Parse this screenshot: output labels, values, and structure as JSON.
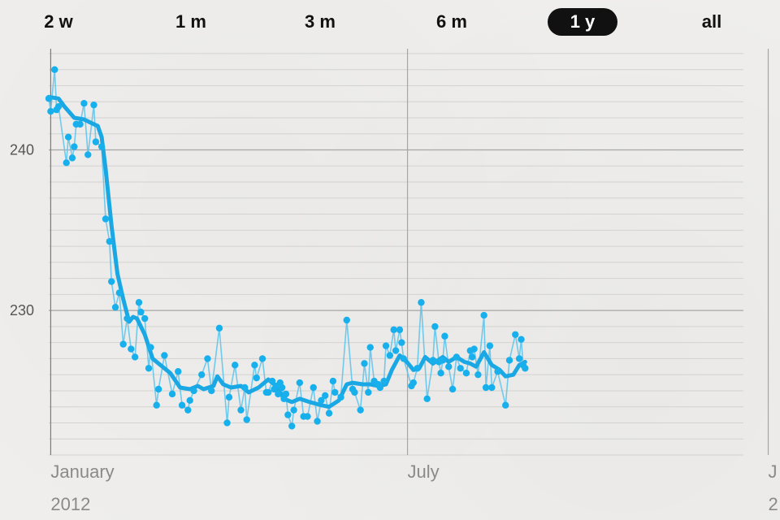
{
  "range_selector": {
    "options": [
      {
        "label": "2 w"
      },
      {
        "label": "1 m"
      },
      {
        "label": "3 m"
      },
      {
        "label": "6 m"
      },
      {
        "label": "1 y"
      },
      {
        "label": "all"
      }
    ],
    "selected": "1 y"
  },
  "colors": {
    "line": "#1aa8e4",
    "raw": "#5bc3ec",
    "point": "#18b0ec",
    "grid_major": "#a6a6a6",
    "grid_minor": "#d2d2d0",
    "background": "#efeeec"
  },
  "chart_data": {
    "type": "line",
    "title": "",
    "xlabel": "",
    "ylabel": "",
    "ylim": [
      221.0,
      246.3
    ],
    "xlim": [
      "2011-12-31",
      "2013-01-07"
    ],
    "y_ticks": [
      230,
      240
    ],
    "x_ticks": [
      {
        "date": "2012-01-01",
        "label": "January",
        "sublabel": "2012"
      },
      {
        "date": "2012-07-01",
        "label": "July",
        "sublabel": ""
      },
      {
        "date": "2013-01-01",
        "label": "J",
        "sublabel": "2"
      }
    ],
    "grid": true,
    "legend": "none",
    "series": [
      {
        "kind": "points",
        "points": [
          [
            "2011-12-31",
            243.2
          ],
          [
            "2012-01-01",
            242.4
          ],
          [
            "2012-01-03",
            245.0
          ],
          [
            "2012-01-04",
            242.5
          ],
          [
            "2012-01-05",
            242.7
          ],
          [
            "2012-01-09",
            239.2
          ],
          [
            "2012-01-10",
            240.8
          ],
          [
            "2012-01-12",
            239.5
          ],
          [
            "2012-01-13",
            240.2
          ],
          [
            "2012-01-14",
            241.6
          ],
          [
            "2012-01-16",
            241.6
          ],
          [
            "2012-01-18",
            242.9
          ],
          [
            "2012-01-20",
            239.7
          ],
          [
            "2012-01-23",
            242.8
          ],
          [
            "2012-01-24",
            240.5
          ],
          [
            "2012-01-27",
            240.2
          ],
          [
            "2012-01-29",
            235.7
          ],
          [
            "2012-01-31",
            234.3
          ],
          [
            "2012-02-01",
            231.8
          ],
          [
            "2012-02-03",
            230.2
          ],
          [
            "2012-02-05",
            231.1
          ],
          [
            "2012-02-07",
            227.9
          ],
          [
            "2012-02-09",
            229.5
          ],
          [
            "2012-02-11",
            227.6
          ],
          [
            "2012-02-13",
            227.1
          ],
          [
            "2012-02-15",
            230.5
          ],
          [
            "2012-02-16",
            229.9
          ],
          [
            "2012-02-18",
            229.5
          ],
          [
            "2012-02-20",
            226.4
          ],
          [
            "2012-02-21",
            227.7
          ],
          [
            "2012-02-24",
            224.1
          ],
          [
            "2012-02-25",
            225.1
          ],
          [
            "2012-02-28",
            227.2
          ],
          [
            "2012-03-03",
            224.8
          ],
          [
            "2012-03-06",
            226.2
          ],
          [
            "2012-03-08",
            224.1
          ],
          [
            "2012-03-11",
            223.8
          ],
          [
            "2012-03-12",
            224.4
          ],
          [
            "2012-03-14",
            225.0
          ],
          [
            "2012-03-18",
            226.0
          ],
          [
            "2012-03-21",
            227.0
          ],
          [
            "2012-03-23",
            225.0
          ],
          [
            "2012-03-27",
            228.9
          ],
          [
            "2012-03-31",
            223.0
          ],
          [
            "2012-04-01",
            224.6
          ],
          [
            "2012-04-04",
            226.6
          ],
          [
            "2012-04-07",
            223.8
          ],
          [
            "2012-04-09",
            225.2
          ],
          [
            "2012-04-10",
            223.2
          ],
          [
            "2012-04-14",
            226.6
          ],
          [
            "2012-04-15",
            225.8
          ],
          [
            "2012-04-18",
            227.0
          ],
          [
            "2012-04-20",
            224.9
          ],
          [
            "2012-04-21",
            224.9
          ],
          [
            "2012-04-23",
            225.6
          ],
          [
            "2012-04-24",
            225.1
          ],
          [
            "2012-04-25",
            225.3
          ],
          [
            "2012-04-26",
            224.8
          ],
          [
            "2012-04-27",
            225.5
          ],
          [
            "2012-04-28",
            225.2
          ],
          [
            "2012-04-29",
            224.5
          ],
          [
            "2012-04-30",
            224.8
          ],
          [
            "2012-05-01",
            223.5
          ],
          [
            "2012-05-03",
            222.8
          ],
          [
            "2012-05-04",
            223.8
          ],
          [
            "2012-05-07",
            225.5
          ],
          [
            "2012-05-09",
            223.4
          ],
          [
            "2012-05-11",
            223.4
          ],
          [
            "2012-05-14",
            225.2
          ],
          [
            "2012-05-16",
            223.1
          ],
          [
            "2012-05-18",
            224.4
          ],
          [
            "2012-05-20",
            224.7
          ],
          [
            "2012-05-22",
            223.6
          ],
          [
            "2012-05-24",
            225.6
          ],
          [
            "2012-05-25",
            224.9
          ],
          [
            "2012-05-28",
            224.6
          ],
          [
            "2012-05-31",
            229.4
          ],
          [
            "2012-06-03",
            225.1
          ],
          [
            "2012-06-04",
            224.9
          ],
          [
            "2012-06-07",
            223.8
          ],
          [
            "2012-06-09",
            226.7
          ],
          [
            "2012-06-11",
            224.9
          ],
          [
            "2012-06-12",
            227.7
          ],
          [
            "2012-06-14",
            225.6
          ],
          [
            "2012-06-16",
            225.4
          ],
          [
            "2012-06-17",
            225.2
          ],
          [
            "2012-06-19",
            225.6
          ],
          [
            "2012-06-20",
            227.8
          ],
          [
            "2012-06-22",
            227.2
          ],
          [
            "2012-06-24",
            228.8
          ],
          [
            "2012-06-25",
            227.5
          ],
          [
            "2012-06-27",
            228.8
          ],
          [
            "2012-06-28",
            228.0
          ],
          [
            "2012-06-29",
            227.0
          ],
          [
            "2012-07-03",
            225.3
          ],
          [
            "2012-07-04",
            225.5
          ],
          [
            "2012-07-06",
            226.4
          ],
          [
            "2012-07-08",
            230.5
          ],
          [
            "2012-07-11",
            224.5
          ],
          [
            "2012-07-14",
            226.9
          ],
          [
            "2012-07-15",
            229.0
          ],
          [
            "2012-07-17",
            226.8
          ],
          [
            "2012-07-18",
            226.1
          ],
          [
            "2012-07-19",
            226.9
          ],
          [
            "2012-07-20",
            228.4
          ],
          [
            "2012-07-22",
            226.5
          ],
          [
            "2012-07-24",
            225.1
          ],
          [
            "2012-07-26",
            227.1
          ],
          [
            "2012-07-28",
            226.4
          ],
          [
            "2012-07-31",
            226.1
          ],
          [
            "2012-08-02",
            227.5
          ],
          [
            "2012-08-03",
            227.1
          ],
          [
            "2012-08-04",
            227.6
          ],
          [
            "2012-08-06",
            226.0
          ],
          [
            "2012-08-09",
            229.7
          ],
          [
            "2012-08-10",
            225.2
          ],
          [
            "2012-08-12",
            227.8
          ],
          [
            "2012-08-13",
            225.2
          ],
          [
            "2012-08-16",
            226.2
          ],
          [
            "2012-08-20",
            224.1
          ],
          [
            "2012-08-22",
            226.9
          ],
          [
            "2012-08-25",
            228.5
          ],
          [
            "2012-08-27",
            227.0
          ],
          [
            "2012-08-28",
            228.2
          ],
          [
            "2012-08-29",
            226.6
          ],
          [
            "2012-08-30",
            226.4
          ]
        ]
      },
      {
        "kind": "trend",
        "points": [
          [
            "2011-12-31",
            243.3
          ],
          [
            "2012-01-05",
            243.2
          ],
          [
            "2012-01-08",
            242.7
          ],
          [
            "2012-01-13",
            242.0
          ],
          [
            "2012-01-18",
            241.9
          ],
          [
            "2012-01-23",
            241.6
          ],
          [
            "2012-01-25",
            241.5
          ],
          [
            "2012-01-27",
            240.8
          ],
          [
            "2012-01-29",
            238.8
          ],
          [
            "2012-02-01",
            235.3
          ],
          [
            "2012-02-04",
            232.3
          ],
          [
            "2012-02-07",
            230.7
          ],
          [
            "2012-02-10",
            229.3
          ],
          [
            "2012-02-12",
            229.6
          ],
          [
            "2012-02-14",
            229.5
          ],
          [
            "2012-02-18",
            228.5
          ],
          [
            "2012-02-22",
            227.0
          ],
          [
            "2012-02-26",
            226.6
          ],
          [
            "2012-03-02",
            226.1
          ],
          [
            "2012-03-07",
            225.2
          ],
          [
            "2012-03-12",
            225.1
          ],
          [
            "2012-03-16",
            225.3
          ],
          [
            "2012-03-19",
            225.1
          ],
          [
            "2012-03-24",
            225.3
          ],
          [
            "2012-03-26",
            225.9
          ],
          [
            "2012-03-29",
            225.4
          ],
          [
            "2012-04-02",
            225.2
          ],
          [
            "2012-04-07",
            225.3
          ],
          [
            "2012-04-11",
            224.9
          ],
          [
            "2012-04-16",
            225.2
          ],
          [
            "2012-04-21",
            225.7
          ],
          [
            "2012-04-25",
            225.3
          ],
          [
            "2012-04-29",
            224.5
          ],
          [
            "2012-05-03",
            224.3
          ],
          [
            "2012-05-07",
            224.5
          ],
          [
            "2012-05-12",
            224.3
          ],
          [
            "2012-05-18",
            224.1
          ],
          [
            "2012-05-22",
            224.0
          ],
          [
            "2012-05-27",
            224.4
          ],
          [
            "2012-05-31",
            225.4
          ],
          [
            "2012-06-03",
            225.5
          ],
          [
            "2012-06-08",
            225.4
          ],
          [
            "2012-06-12",
            225.4
          ],
          [
            "2012-06-16",
            225.3
          ],
          [
            "2012-06-20",
            225.4
          ],
          [
            "2012-06-23",
            226.3
          ],
          [
            "2012-06-27",
            227.2
          ],
          [
            "2012-06-30",
            226.9
          ],
          [
            "2012-07-04",
            226.3
          ],
          [
            "2012-07-07",
            226.4
          ],
          [
            "2012-07-10",
            227.1
          ],
          [
            "2012-07-14",
            226.7
          ],
          [
            "2012-07-19",
            227.1
          ],
          [
            "2012-07-22",
            226.8
          ],
          [
            "2012-07-26",
            227.1
          ],
          [
            "2012-07-30",
            226.8
          ],
          [
            "2012-08-02",
            226.7
          ],
          [
            "2012-08-05",
            226.5
          ],
          [
            "2012-08-09",
            227.4
          ],
          [
            "2012-08-13",
            226.6
          ],
          [
            "2012-08-17",
            226.3
          ],
          [
            "2012-08-20",
            225.9
          ],
          [
            "2012-08-24",
            226.0
          ],
          [
            "2012-08-27",
            226.6
          ],
          [
            "2012-08-30",
            226.8
          ]
        ]
      }
    ]
  }
}
